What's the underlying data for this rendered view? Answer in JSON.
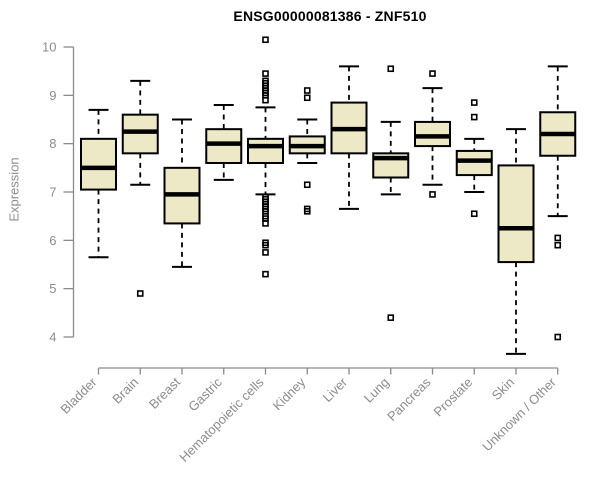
{
  "chart_data": {
    "type": "boxplot",
    "title": "ENSG00000081386 - ZNF510",
    "ylabel": "Expression",
    "xlabel": "",
    "ylim": [
      4,
      10
    ],
    "yticks": [
      4,
      5,
      6,
      7,
      8,
      9,
      10
    ],
    "grid": false,
    "legend": false,
    "categories": [
      "Bladder",
      "Brain",
      "Breast",
      "Gastric",
      "Hematopoietic cells",
      "Kidney",
      "Liver",
      "Lung",
      "Pancreas",
      "Prostate",
      "Skin",
      "Unknown / Other"
    ],
    "series": [
      {
        "name": "Bladder",
        "whisker_low": 5.65,
        "q1": 7.05,
        "median": 7.5,
        "q3": 8.1,
        "whisker_high": 8.7,
        "outliers": []
      },
      {
        "name": "Brain",
        "whisker_low": 7.15,
        "q1": 7.8,
        "median": 8.25,
        "q3": 8.6,
        "whisker_high": 9.3,
        "outliers": [
          4.9
        ]
      },
      {
        "name": "Breast",
        "whisker_low": 5.45,
        "q1": 6.35,
        "median": 6.95,
        "q3": 7.5,
        "whisker_high": 8.5,
        "outliers": []
      },
      {
        "name": "Gastric",
        "whisker_low": 7.25,
        "q1": 7.6,
        "median": 8.0,
        "q3": 8.3,
        "whisker_high": 8.8,
        "outliers": []
      },
      {
        "name": "Hematopoietic cells",
        "whisker_low": 6.95,
        "q1": 7.6,
        "median": 7.95,
        "q3": 8.1,
        "whisker_high": 8.75,
        "outliers": [
          10.15,
          9.45,
          9.3,
          9.25,
          9.2,
          9.15,
          9.1,
          9.05,
          9.0,
          8.9,
          6.9,
          6.85,
          6.8,
          6.75,
          6.7,
          6.65,
          6.6,
          6.5,
          6.45,
          6.35,
          5.95,
          5.9,
          5.75,
          5.3
        ]
      },
      {
        "name": "Kidney",
        "whisker_low": 7.6,
        "q1": 7.8,
        "median": 7.95,
        "q3": 8.15,
        "whisker_high": 8.5,
        "outliers": [
          9.1,
          8.95,
          7.15,
          6.65,
          6.6
        ]
      },
      {
        "name": "Liver",
        "whisker_low": 6.65,
        "q1": 7.8,
        "median": 8.3,
        "q3": 8.85,
        "whisker_high": 9.6,
        "outliers": []
      },
      {
        "name": "Lung",
        "whisker_low": 6.95,
        "q1": 7.3,
        "median": 7.7,
        "q3": 7.8,
        "whisker_high": 8.45,
        "outliers": [
          9.55,
          4.4
        ]
      },
      {
        "name": "Pancreas",
        "whisker_low": 7.15,
        "q1": 7.95,
        "median": 8.15,
        "q3": 8.45,
        "whisker_high": 9.15,
        "outliers": [
          9.45,
          6.95
        ]
      },
      {
        "name": "Prostate",
        "whisker_low": 7.0,
        "q1": 7.35,
        "median": 7.65,
        "q3": 7.85,
        "whisker_high": 8.1,
        "outliers": [
          8.85,
          8.55,
          6.55
        ]
      },
      {
        "name": "Skin",
        "whisker_low": 3.65,
        "q1": 5.55,
        "median": 6.25,
        "q3": 7.55,
        "whisker_high": 8.3,
        "outliers": []
      },
      {
        "name": "Unknown / Other",
        "whisker_low": 6.5,
        "q1": 7.75,
        "median": 8.2,
        "q3": 8.65,
        "whisker_high": 9.6,
        "outliers": [
          6.05,
          5.9,
          4.0
        ]
      }
    ]
  },
  "colors": {
    "box_fill": "#ede8c6",
    "box_border": "#000000",
    "median": "#000000",
    "whisker": "#000000",
    "outlier": "#000000",
    "axis": "#8a8a8a",
    "tick_label": "#8c8c8c",
    "title": "#000000",
    "background": "#ffffff"
  }
}
